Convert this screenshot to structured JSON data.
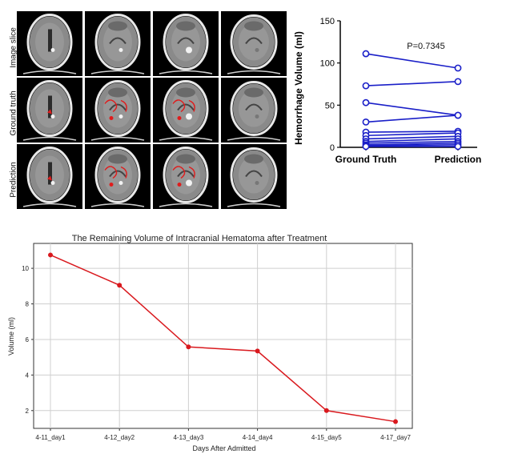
{
  "ct_grid": {
    "row_labels": [
      "Image slice",
      "Ground truth",
      "Prediction"
    ],
    "columns": 4,
    "colors": {
      "background": "#000000",
      "tissue": "#8a8a8a",
      "overlay": "#e01c1c"
    }
  },
  "chart_data": [
    {
      "type": "line",
      "ylabel": "Hemorrhage Volume (ml)",
      "categories": [
        "Ground Truth",
        "Prediction"
      ],
      "ylim": [
        0,
        150
      ],
      "yticks": [
        0,
        50,
        100,
        150
      ],
      "annotation": "P=0.7345",
      "color": "#1a1fc8",
      "pairs": [
        [
          111,
          94
        ],
        [
          73,
          78
        ],
        [
          53,
          38
        ],
        [
          30,
          38
        ],
        [
          18,
          19
        ],
        [
          14,
          17
        ],
        [
          10,
          13
        ],
        [
          7,
          10
        ],
        [
          5,
          7
        ],
        [
          3,
          5
        ],
        [
          2,
          3
        ],
        [
          1,
          1
        ]
      ]
    },
    {
      "type": "line",
      "title": "The Remaining Volume of Intracranial Hematoma after Treatment",
      "xlabel": "Days After Admitted",
      "ylabel": "Volume (ml)",
      "categories": [
        "4-11_day1",
        "4-12_day2",
        "4-13_day3",
        "4-14_day4",
        "4-15_day5",
        "4-17_day7"
      ],
      "values": [
        10.75,
        9.05,
        5.58,
        5.35,
        2.0,
        1.38
      ],
      "ylim": [
        1.0,
        11.4
      ],
      "yticks": [
        2,
        4,
        6,
        8,
        10
      ],
      "grid": true,
      "color": "#d9191e"
    }
  ]
}
